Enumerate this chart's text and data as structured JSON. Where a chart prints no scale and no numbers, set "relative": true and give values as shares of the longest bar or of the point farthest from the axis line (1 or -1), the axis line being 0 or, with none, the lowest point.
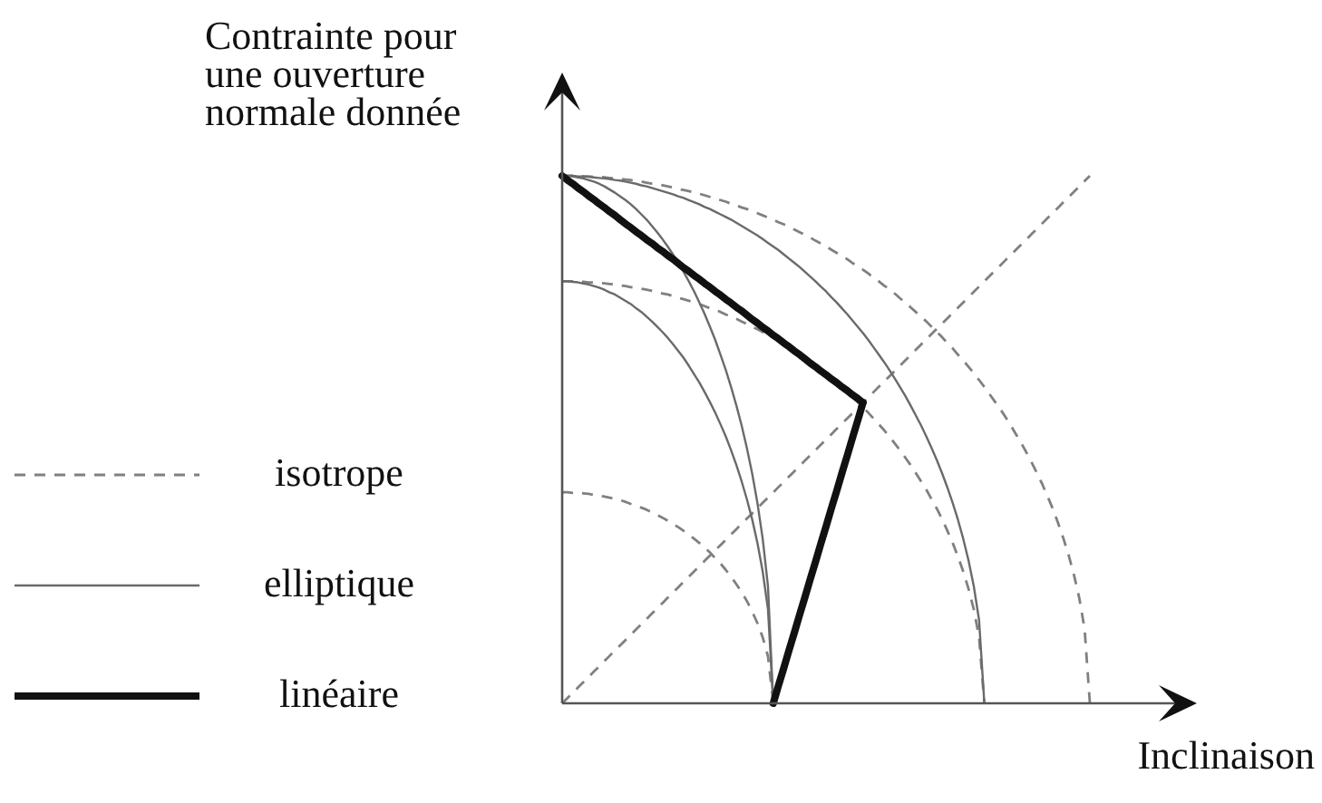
{
  "chart_data": {
    "type": "line",
    "ylabel": "Contrainte pour une ouverture normale donnée",
    "xlabel": "Inclinaison",
    "relative": true,
    "legend": "left",
    "categories": [
      null,
      null,
      null,
      null,
      null,
      null,
      null,
      null,
      null,
      null,
      null,
      null,
      null,
      null,
      null,
      null,
      null,
      null,
      null,
      null,
      null,
      null,
      null,
      null,
      null,
      null,
      null,
      null,
      null,
      null,
      null,
      null,
      null,
      null,
      null,
      null,
      null,
      null,
      null,
      null,
      null,
      null,
      null,
      null,
      null,
      null,
      null,
      null,
      null,
      null,
      null,
      null,
      null,
      null,
      null,
      null,
      null,
      null,
      null,
      null,
      null,
      null,
      null,
      null,
      null,
      null,
      null,
      null,
      null,
      null,
      null,
      null,
      null,
      null,
      null,
      null,
      null,
      null,
      null,
      null,
      null,
      null,
      null,
      null,
      null,
      null,
      null,
      null,
      null,
      null,
      null,
      null,
      null,
      null,
      null,
      null,
      null,
      null,
      null,
      null,
      null
    ],
    "series": [
      {
        "color": "#808080",
        "line_style": "dashed",
        "values": [
          0,
          0.01,
          0.02,
          0.03,
          0.04,
          0.05,
          0.06,
          0.07,
          0.08,
          0.09,
          0.1,
          0.11,
          0.12,
          0.13,
          0.14,
          0.15,
          0.16,
          0.17,
          0.18,
          0.19,
          0.2,
          0.21,
          0.22,
          0.23,
          0.24,
          0.25,
          0.26,
          0.27,
          0.28,
          0.29,
          0.3,
          0.31,
          0.32,
          0.33,
          0.34,
          0.35,
          0.36,
          0.37,
          0.38,
          0.39,
          0.4,
          0.41,
          0.42,
          0.43,
          0.44,
          0.45,
          0.46,
          0.47,
          0.48,
          0.49,
          0.5,
          0.51,
          0.52,
          0.53,
          0.54,
          0.55,
          0.56,
          0.57,
          0.58,
          0.59,
          0.6,
          0.61,
          0.62,
          0.63,
          0.64,
          0.65,
          0.66,
          0.67,
          0.68,
          0.69,
          0.7,
          0.71,
          0.72,
          0.73,
          0.74,
          0.75,
          0.76,
          0.77,
          0.78,
          0.79,
          0.8,
          0.81,
          0.82,
          0.83,
          0.84,
          0.85,
          0.86,
          0.87,
          0.88,
          0.89,
          0.9,
          0.91,
          0.92,
          0.93,
          0.94,
          0.95,
          0.96,
          0.97,
          0.98,
          0.99,
          1
        ]
      },
      {
        "name": "isotrope",
        "color": "#808080",
        "line_style": "dashed",
        "values": [
          1,
          1,
          1,
          1,
          0.999,
          0.999,
          0.998,
          0.998,
          0.997,
          0.996,
          0.995,
          0.994,
          0.993,
          0.992,
          0.99,
          0.989,
          0.987,
          0.985,
          0.984,
          0.982,
          0.98,
          0.978,
          0.975,
          0.973,
          0.971,
          0.968,
          0.966,
          0.963,
          0.96,
          0.957,
          0.954,
          0.951,
          0.947,
          0.944,
          0.94,
          0.937,
          0.933,
          0.929,
          0.925,
          0.921,
          0.917,
          0.912,
          0.908,
          0.903,
          0.898,
          0.893,
          0.888,
          0.883,
          0.877,
          0.872,
          0.866,
          0.86,
          0.854,
          0.848,
          0.842,
          0.835,
          0.828,
          0.822,
          0.815,
          0.807,
          0.8,
          0.792,
          0.785,
          0.777,
          0.768,
          0.76,
          0.751,
          0.742,
          0.733,
          0.724,
          0.714,
          0.704,
          0.694,
          0.683,
          0.673,
          0.661,
          0.65,
          0.638,
          0.626,
          0.613,
          0.6,
          0.586,
          0.572,
          0.558,
          0.543,
          0.527,
          0.51,
          0.493,
          0.475,
          0.456,
          0.436,
          0.415,
          0.392,
          0.368,
          0.341,
          0.312,
          0.28,
          0.243,
          0.199,
          0.141,
          0
        ]
      },
      {
        "color": "#808080",
        "line_style": "dashed",
        "values": [
          0.8,
          0.8,
          0.8,
          0.799,
          0.799,
          0.798,
          0.798,
          0.797,
          0.796,
          0.795,
          0.794,
          0.792,
          0.791,
          0.789,
          0.788,
          0.786,
          0.784,
          0.782,
          0.779,
          0.777,
          0.775,
          0.772,
          0.769,
          0.766,
          0.763,
          0.76,
          0.757,
          0.753,
          0.749,
          0.746,
          0.742,
          0.737,
          0.733,
          0.729,
          0.724,
          0.719,
          0.714,
          0.709,
          0.704,
          0.698,
          0.693,
          0.687,
          0.681,
          0.675,
          0.668,
          0.661,
          0.655,
          0.647,
          0.64,
          0.632,
          0.624,
          0.616,
          0.608,
          0.599,
          0.59,
          0.581,
          0.571,
          0.561,
          0.551,
          0.54,
          0.529,
          0.518,
          0.506,
          0.493,
          0.48,
          0.466,
          0.452,
          0.437,
          0.421,
          0.405,
          0.387,
          0.369,
          0.349,
          0.327,
          0.304,
          0.278,
          0.25,
          0.217,
          0.178,
          0.126,
          0,
          null,
          null,
          null,
          null,
          null,
          null,
          null,
          null,
          null,
          null,
          null,
          null,
          null,
          null,
          null,
          null,
          null,
          null,
          null,
          null
        ]
      },
      {
        "color": "#808080",
        "line_style": "dashed",
        "values": [
          0.4,
          0.4,
          0.399,
          0.399,
          0.398,
          0.397,
          0.395,
          0.394,
          0.392,
          0.39,
          0.387,
          0.385,
          0.382,
          0.378,
          0.375,
          0.371,
          0.367,
          0.362,
          0.357,
          0.352,
          0.346,
          0.34,
          0.334,
          0.327,
          0.32,
          0.312,
          0.304,
          0.295,
          0.286,
          0.275,
          0.265,
          0.253,
          0.24,
          0.226,
          0.211,
          0.194,
          0.174,
          0.152,
          0.125,
          0.089,
          0,
          null,
          null,
          null,
          null,
          null,
          null,
          null,
          null,
          null,
          null,
          null,
          null,
          null,
          null,
          null,
          null,
          null,
          null,
          null,
          null,
          null,
          null,
          null,
          null,
          null,
          null,
          null,
          null,
          null,
          null,
          null,
          null,
          null,
          null,
          null,
          null,
          null,
          null,
          null,
          null,
          null,
          null,
          null,
          null,
          null,
          null,
          null,
          null,
          null,
          null,
          null,
          null,
          null,
          null,
          null,
          null,
          null,
          null,
          null,
          null
        ]
      },
      {
        "name": "elliptique",
        "color": "#6a6a6a",
        "line_style": "solid",
        "values": [
          1,
          1,
          1,
          0.999,
          0.999,
          0.998,
          0.997,
          0.996,
          0.995,
          0.994,
          0.992,
          0.991,
          0.989,
          0.987,
          0.985,
          0.982,
          0.98,
          0.977,
          0.974,
          0.971,
          0.968,
          0.965,
          0.961,
          0.958,
          0.954,
          0.95,
          0.946,
          0.941,
          0.937,
          0.932,
          0.927,
          0.922,
          0.917,
          0.911,
          0.905,
          0.899,
          0.893,
          0.887,
          0.88,
          0.873,
          0.866,
          0.859,
          0.851,
          0.843,
          0.835,
          0.827,
          0.818,
          0.809,
          0.8,
          0.79,
          0.781,
          0.77,
          0.76,
          0.749,
          0.738,
          0.726,
          0.714,
          0.702,
          0.689,
          0.675,
          0.661,
          0.647,
          0.632,
          0.616,
          0.6,
          0.583,
          0.565,
          0.546,
          0.527,
          0.506,
          0.484,
          0.461,
          0.436,
          0.409,
          0.38,
          0.348,
          0.312,
          0.271,
          0.222,
          0.158,
          0,
          null,
          null,
          null,
          null,
          null,
          null,
          null,
          null,
          null,
          null,
          null,
          null,
          null,
          null,
          null,
          null,
          null,
          null,
          null,
          null
        ]
      },
      {
        "color": "#6a6a6a",
        "line_style": "solid",
        "values": [
          1,
          1,
          0.999,
          0.997,
          0.995,
          0.992,
          0.989,
          0.985,
          0.98,
          0.974,
          0.968,
          0.961,
          0.954,
          0.946,
          0.937,
          0.927,
          0.917,
          0.905,
          0.893,
          0.88,
          0.866,
          0.851,
          0.835,
          0.818,
          0.8,
          0.781,
          0.76,
          0.738,
          0.714,
          0.689,
          0.661,
          0.632,
          0.6,
          0.565,
          0.527,
          0.484,
          0.436,
          0.38,
          0.312,
          0.222,
          0,
          null,
          null,
          null,
          null,
          null,
          null,
          null,
          null,
          null,
          null,
          null,
          null,
          null,
          null,
          null,
          null,
          null,
          null,
          null,
          null,
          null,
          null,
          null,
          null,
          null,
          null,
          null,
          null,
          null,
          null,
          null,
          null,
          null,
          null,
          null,
          null,
          null,
          null,
          null,
          null,
          null,
          null,
          null,
          null,
          null,
          null,
          null,
          null,
          null,
          null,
          null,
          null,
          null,
          null,
          null,
          null,
          null,
          null,
          null,
          null
        ]
      },
      {
        "color": "#6a6a6a",
        "line_style": "solid",
        "values": [
          0.8,
          0.8,
          0.799,
          0.798,
          0.796,
          0.794,
          0.791,
          0.788,
          0.784,
          0.779,
          0.775,
          0.769,
          0.763,
          0.757,
          0.749,
          0.742,
          0.733,
          0.724,
          0.714,
          0.704,
          0.693,
          0.681,
          0.668,
          0.655,
          0.64,
          0.624,
          0.608,
          0.59,
          0.571,
          0.551,
          0.529,
          0.506,
          0.48,
          0.452,
          0.421,
          0.387,
          0.349,
          0.304,
          0.25,
          0.178,
          0,
          null,
          null,
          null,
          null,
          null,
          null,
          null,
          null,
          null,
          null,
          null,
          null,
          null,
          null,
          null,
          null,
          null,
          null,
          null,
          null,
          null,
          null,
          null,
          null,
          null,
          null,
          null,
          null,
          null,
          null,
          null,
          null,
          null,
          null,
          null,
          null,
          null,
          null,
          null,
          null,
          null,
          null,
          null,
          null,
          null,
          null,
          null,
          null,
          null,
          null,
          null,
          null,
          null,
          null,
          null,
          null,
          null,
          null,
          null,
          null
        ]
      },
      {
        "name": "linéaire",
        "color": "#111111",
        "line_style": "solid",
        "values": [
          1,
          0.992,
          0.985,
          0.977,
          0.97,
          0.962,
          0.955,
          0.947,
          0.94,
          0.932,
          0.925,
          0.917,
          0.909,
          0.902,
          0.894,
          0.887,
          0.879,
          0.872,
          0.864,
          0.857,
          0.849,
          0.842,
          0.834,
          0.826,
          0.819,
          0.811,
          0.804,
          0.796,
          0.789,
          0.781,
          0.774,
          0.766,
          0.759,
          0.751,
          0.744,
          0.736,
          0.728,
          0.721,
          0.713,
          0.706,
          0.698,
          0.691,
          0.683,
          0.676,
          0.668,
          0.661,
          0.653,
          0.645,
          0.638,
          0.63,
          0.623,
          0.615,
          0.608,
          0.6,
          0.593,
          0.585,
          0.578,
          0.57,
          null,
          null,
          null,
          null,
          null,
          null,
          null,
          null,
          null,
          null,
          null,
          null,
          null,
          null,
          null,
          null,
          null,
          null,
          null,
          null,
          null,
          null,
          null,
          null,
          null,
          null,
          null,
          null,
          null,
          null,
          null,
          null,
          null,
          null,
          null,
          null,
          null,
          null,
          null,
          null,
          null,
          null,
          null
        ]
      },
      {
        "color": "#111111",
        "line_style": "solid",
        "values": [
          null,
          null,
          null,
          null,
          null,
          null,
          null,
          null,
          null,
          null,
          null,
          null,
          null,
          null,
          null,
          null,
          null,
          null,
          null,
          null,
          null,
          null,
          null,
          null,
          null,
          null,
          null,
          null,
          null,
          null,
          null,
          null,
          null,
          null,
          null,
          null,
          null,
          null,
          null,
          null,
          0,
          0.034,
          0.067,
          0.101,
          0.134,
          0.168,
          0.201,
          0.235,
          0.268,
          0.302,
          0.335,
          0.369,
          0.402,
          0.436,
          0.469,
          0.503,
          0.536,
          0.57,
          null,
          null,
          null,
          null,
          null,
          null,
          null,
          null,
          null,
          null,
          null,
          null,
          null,
          null,
          null,
          null,
          null,
          null,
          null,
          null,
          null,
          null,
          null,
          null,
          null,
          null,
          null,
          null,
          null,
          null,
          null,
          null,
          null,
          null,
          null,
          null,
          null,
          null,
          null,
          null,
          null,
          null,
          null
        ]
      }
    ]
  }
}
